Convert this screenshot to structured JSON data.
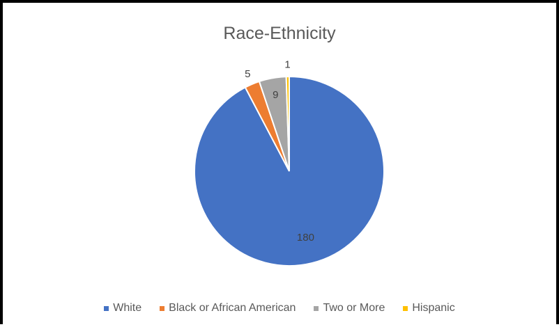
{
  "chart_data": {
    "type": "pie",
    "title": "Race-Ethnicity",
    "categories": [
      "White",
      "Black or African American",
      "Two or More",
      "Hispanic"
    ],
    "values": [
      180,
      5,
      9,
      1
    ],
    "colors": [
      "#4472C4",
      "#ED7D31",
      "#A5A5A5",
      "#FFC000"
    ],
    "data_labels_shown": true,
    "legend_position": "bottom"
  }
}
